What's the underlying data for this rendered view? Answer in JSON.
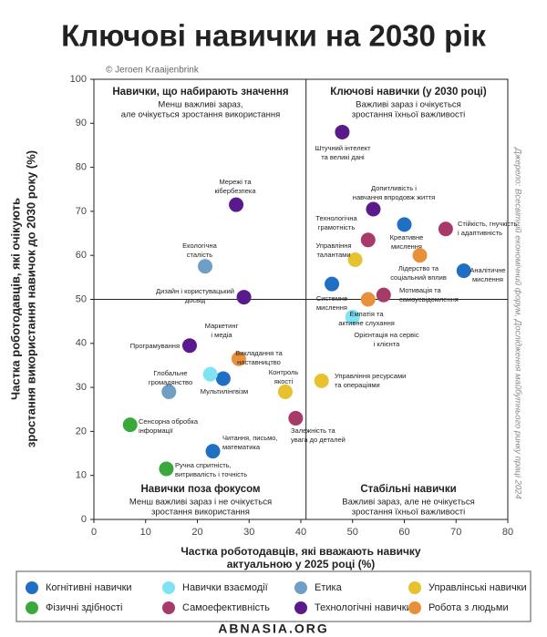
{
  "chart_data": {
    "type": "scatter",
    "title": "Ключові навички на 2030 рік",
    "source": "© Jeroen Kraaijenbrink",
    "side_note": "Джерело: Всесвітній економічний форум, Дослідження майбутнього ринку праці 2024",
    "xlabel": [
      "Частка роботодавців, які вважають навичку",
      "актуальною у 2025 році (%)"
    ],
    "ylabel": [
      "Частка роботодавців, які очікують",
      "зростання використання навичок до 2030 року (%)"
    ],
    "xlim": [
      0,
      80
    ],
    "ylim": [
      0,
      100
    ],
    "xticks": [
      0,
      10,
      20,
      30,
      40,
      50,
      60,
      70,
      80
    ],
    "yticks": [
      0,
      10,
      20,
      30,
      40,
      50,
      60,
      70,
      80,
      90,
      100
    ],
    "quadrant_lines": {
      "x": 41,
      "y": 50
    },
    "quadrants": [
      {
        "title": "Навички, що набирають значення",
        "lines": [
          "Менш важливі зараз,",
          "але очікується зростання використання"
        ]
      },
      {
        "title": "Ключові навички (у 2030 році)",
        "lines": [
          "Важливі зараз і очікується",
          "зростання їхньої важливості"
        ]
      },
      {
        "title": "Навички поза фокусом",
        "lines": [
          "Менш важливі зараз і не очікується",
          "зростання використання"
        ]
      },
      {
        "title": "Стабільні навички",
        "lines": [
          "Важливі зараз, але не очікується",
          "зростання їхньої важливості"
        ]
      }
    ],
    "series": [
      {
        "name": "Когнітивні навички",
        "color": "#1f6fc5",
        "x": [
          60,
          71.5,
          46,
          25,
          23
        ],
        "y": [
          67,
          56.5,
          53.5,
          32,
          15.5
        ],
        "labels": [
          [
            "Креативне",
            "мислення"
          ],
          [
            "Аналітичне",
            "мислення"
          ],
          [
            "Системне",
            "мислення"
          ],
          [
            "Мультилінгвізм"
          ],
          [
            "Читання, письмо,",
            "математика"
          ]
        ]
      },
      {
        "name": "Навички взаємодії",
        "color": "#7fe3f3",
        "x": [
          50,
          22.5
        ],
        "y": [
          46,
          33
        ],
        "labels": [
          [
            "Емпатія та",
            "активне слухання"
          ],
          [
            "Маркетинг",
            "і медіа"
          ]
        ]
      },
      {
        "name": "Етика",
        "color": "#6f9fc4",
        "x": [
          21.5,
          14.5
        ],
        "y": [
          57.5,
          29
        ],
        "labels": [
          [
            "Екологічна",
            "сталість"
          ],
          [
            "Глобальне",
            "громадянство"
          ]
        ]
      },
      {
        "name": "Управлінські навички",
        "color": "#e8c12f",
        "x": [
          50.5,
          37,
          44
        ],
        "y": [
          59,
          29,
          31.5
        ],
        "labels": [
          [
            "Управління",
            "талантами"
          ],
          [
            "Контроль",
            "якості"
          ],
          [
            "Управління ресурсами",
            "та операціями"
          ]
        ]
      },
      {
        "name": "Фізичні здібності",
        "color": "#3aa83a",
        "x": [
          7,
          14
        ],
        "y": [
          21.5,
          11.5
        ],
        "labels": [
          [
            "Сенсорна обробка",
            "інформації"
          ],
          [
            "Ручна спритність,",
            "витривалість і точність"
          ]
        ]
      },
      {
        "name": "Самоефективність",
        "color": "#a83a6a",
        "x": [
          68,
          53,
          56,
          39
        ],
        "y": [
          66,
          63.5,
          51,
          23
        ],
        "labels": [
          [
            "Стійкість, гнучкість",
            "і адаптивність"
          ],
          [
            "Технологічна",
            "грамотність"
          ],
          [
            "Мотивація та",
            "самоусвідомлення"
          ],
          [
            "Залежність та",
            "увага до деталей"
          ]
        ]
      },
      {
        "name": "Технологічні навички",
        "color": "#5a1a8c",
        "x": [
          48,
          27.5,
          54,
          29,
          18.5
        ],
        "y": [
          88,
          71.5,
          70.5,
          50.5,
          39.5
        ],
        "labels": [
          [
            "Штучний інтелект",
            "та великі дані"
          ],
          [
            "Мережі та",
            "кібербезпека"
          ],
          [
            "Допитливість і",
            "навчання впродовж життя"
          ],
          [
            "Дизайн і користувацький",
            "досвід"
          ],
          [
            "Програмування"
          ]
        ]
      },
      {
        "name": "Робота з людьми",
        "color": "#e8913a",
        "x": [
          63,
          53,
          28
        ],
        "y": [
          60,
          50,
          36.5
        ],
        "labels": [
          [
            "Лідерство та",
            "соціальний вплив"
          ],
          [
            "Орієнтація на сервіс",
            "і клієнта"
          ],
          [
            "Викладання та",
            "наставництво"
          ]
        ]
      }
    ],
    "watermark": "ABNASIA.ORG"
  }
}
